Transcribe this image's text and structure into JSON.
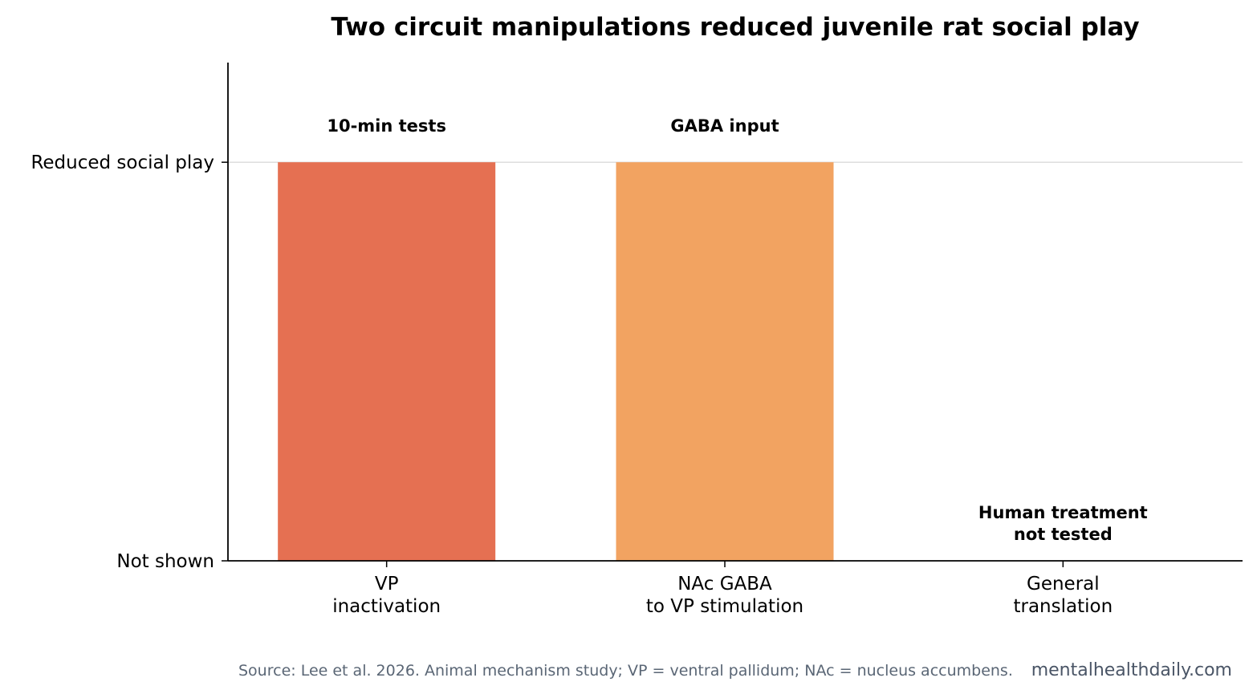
{
  "chart_data": {
    "type": "bar",
    "title": "Two circuit manipulations reduced juvenile rat social play",
    "xlabel": "",
    "ylabel": "",
    "categories": [
      [
        "VP",
        "inactivation"
      ],
      [
        "NAc GABA",
        "to VP stimulation"
      ],
      [
        "General",
        "translation"
      ]
    ],
    "values": [
      1,
      1,
      0
    ],
    "ylim": [
      0,
      1.25
    ],
    "y_ticks": [
      {
        "value": 0,
        "label": "Not shown"
      },
      {
        "value": 1,
        "label": "Reduced social play"
      }
    ],
    "bar_colors": [
      "#e57052",
      "#f2a361",
      "#cccccc"
    ],
    "annotations": [
      [
        "10-min tests"
      ],
      [
        "GABA input"
      ],
      [
        "Human treatment",
        "not tested"
      ]
    ],
    "grid": "horizontal at Reduced social play",
    "legend": "none"
  },
  "footer": {
    "source": "Source: Lee et al. 2026. Animal mechanism study; VP = ventral pallidum; NAc = nucleus accumbens.",
    "brand": "mentalhealthdaily.com"
  },
  "colors": {
    "axis": "#000000",
    "gridline": "#dddddd",
    "source_text": "#5a6675",
    "brand_text": "#4a5566"
  }
}
